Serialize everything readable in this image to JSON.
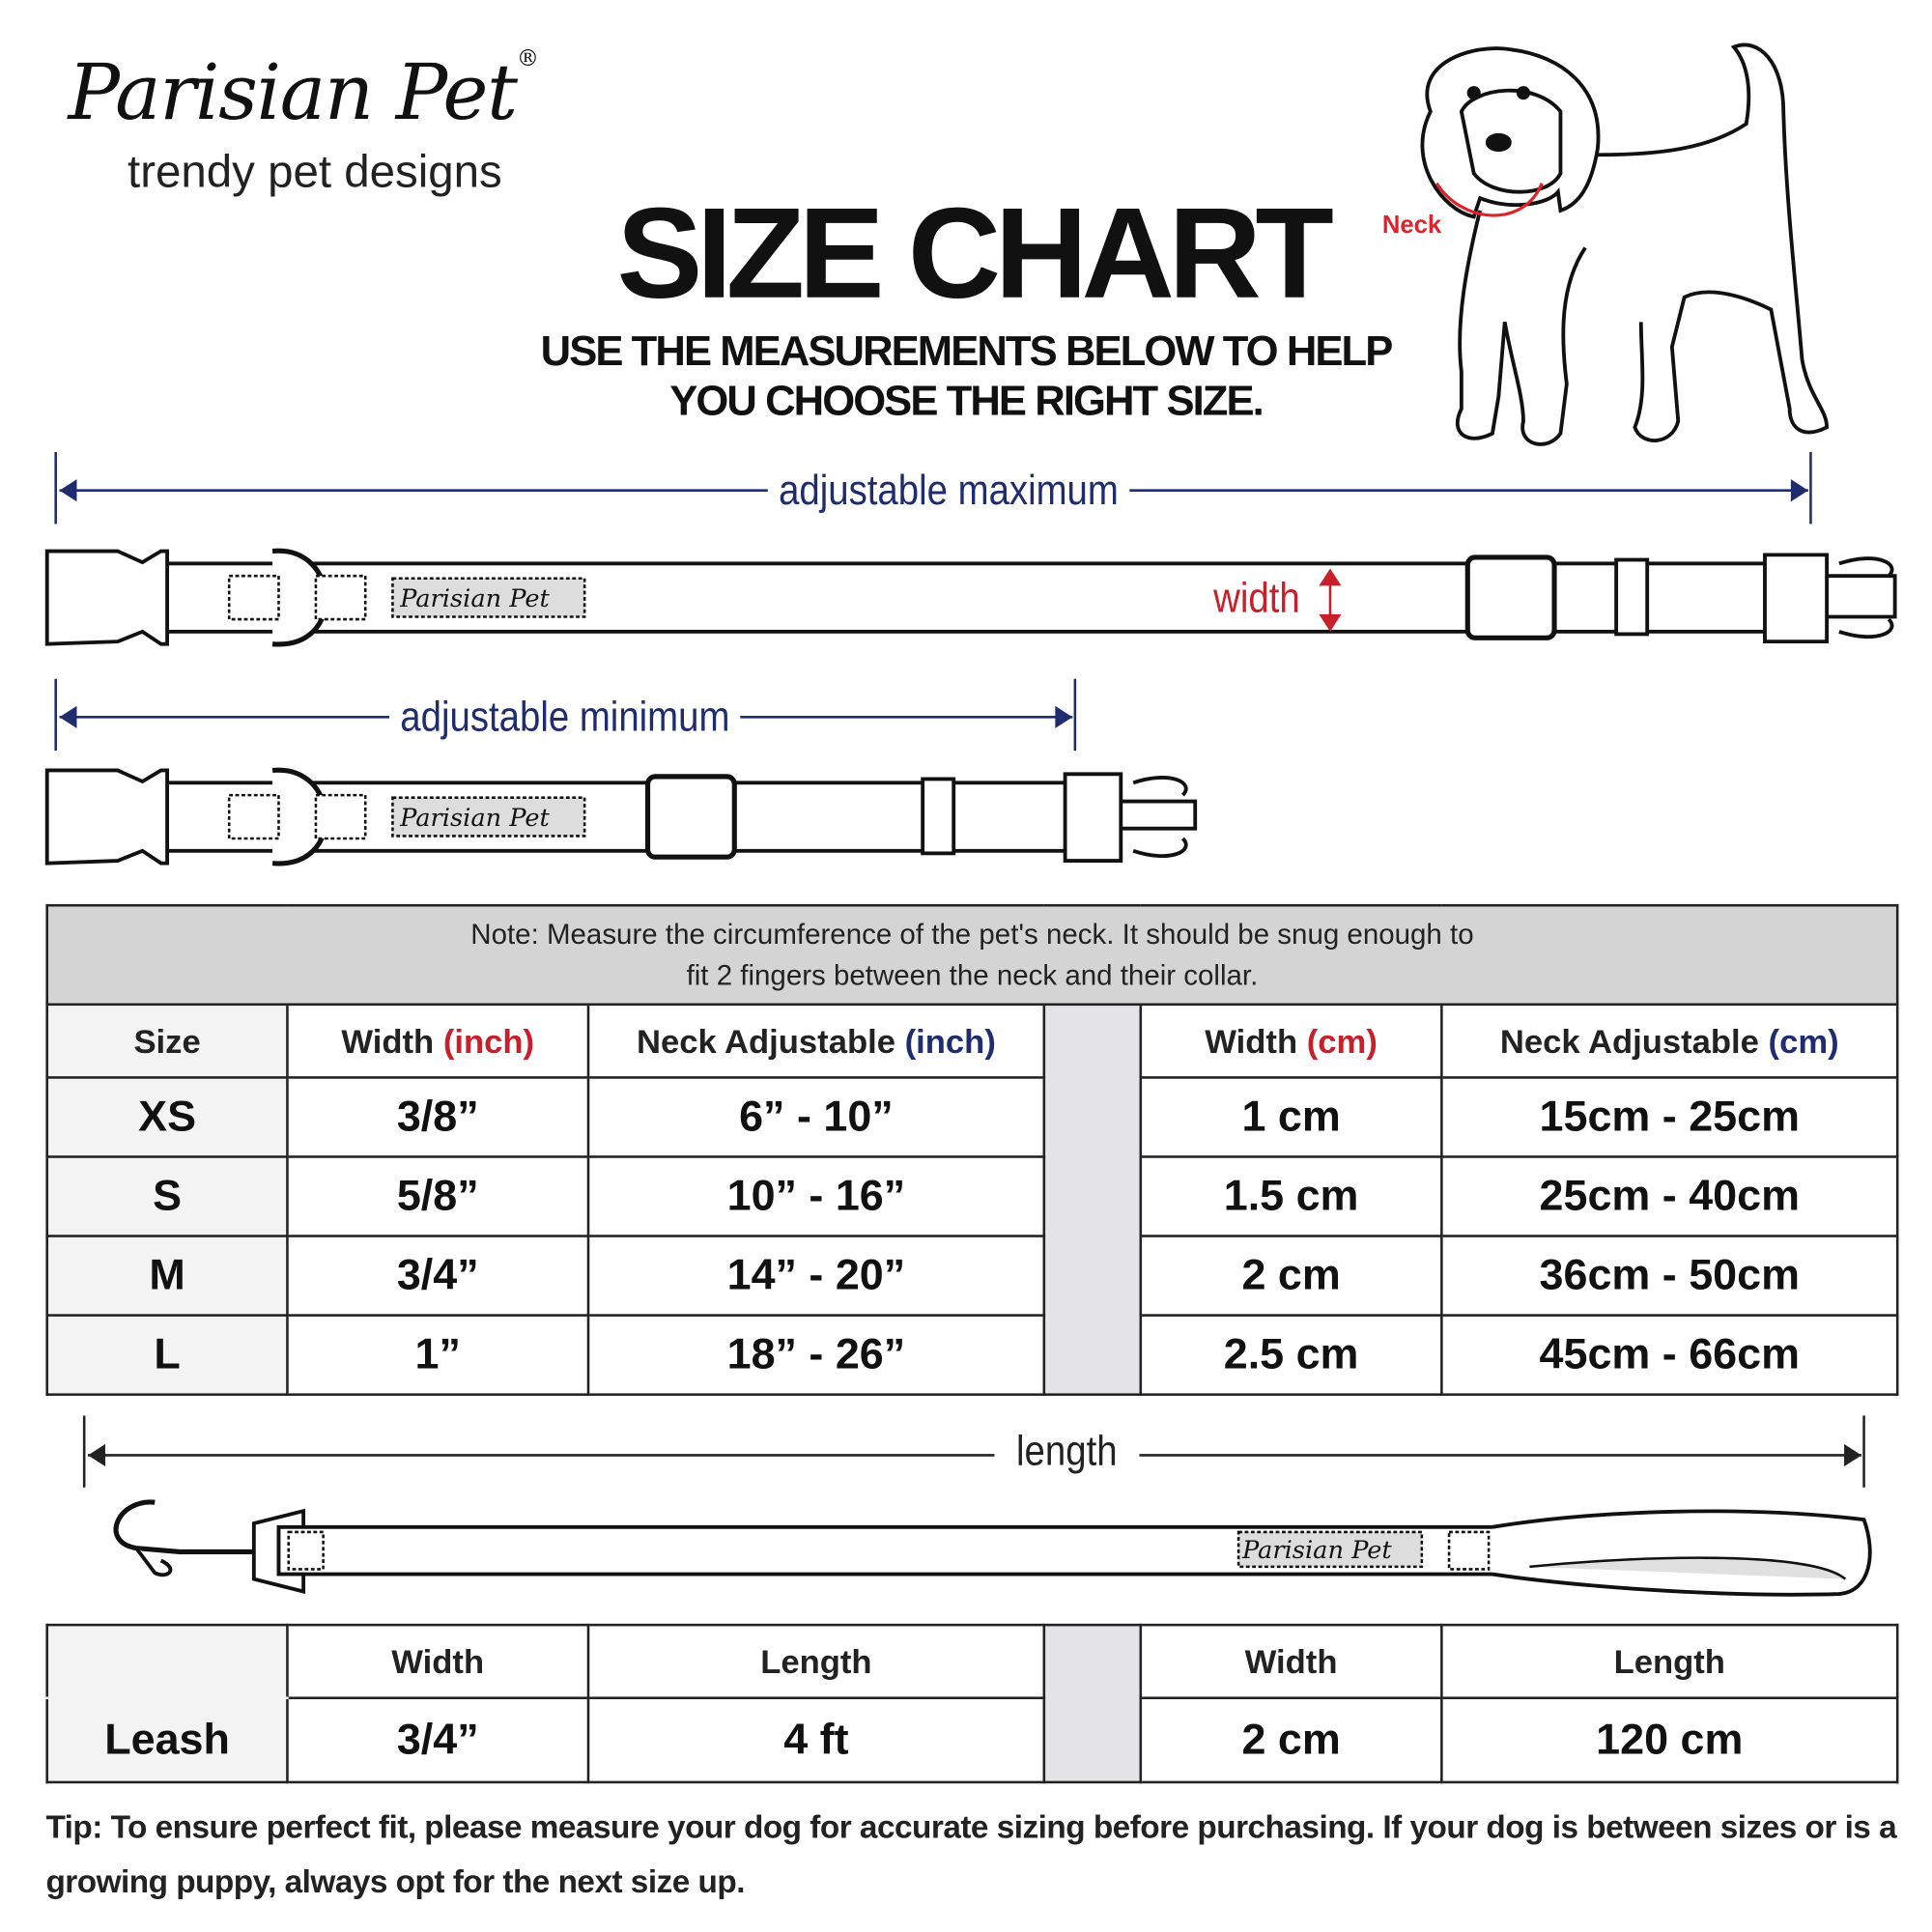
{
  "brand": {
    "name": "Parisian Pet",
    "registered": "®",
    "tagline": "trendy pet designs"
  },
  "title": "SIZE CHART",
  "subtitle_lines": [
    "USE THE MEASUREMENTS BELOW TO HELP",
    "YOU CHOOSE THE RIGHT SIZE."
  ],
  "dog": {
    "neck_label": "Neck"
  },
  "diagram": {
    "max_label": "adjustable maximum",
    "min_label": "adjustable minimum",
    "width_label": "width",
    "length_label": "length",
    "collar_logo": "Parisian Pet"
  },
  "colors": {
    "navy": "#1f2d6e",
    "red": "#c8202a",
    "note_bg": "#d4d4d4"
  },
  "collar_table": {
    "note_lines": [
      "Note: Measure the circumference of the pet's neck. It should be snug enough to",
      "fit 2 fingers between the neck and their collar."
    ],
    "headers": {
      "size": "Size",
      "width": "Width",
      "neck": "Neck Adjustable",
      "unit_inch": "(inch)",
      "width_cm": "Width",
      "neck_cm": "Neck Adjustable",
      "unit_cm": "(cm)"
    },
    "rows": [
      {
        "size": "XS",
        "width_in": "3/8”",
        "neck_in": "6” - 10”",
        "width_cm": "1 cm",
        "neck_cm": "15cm - 25cm"
      },
      {
        "size": "S",
        "width_in": "5/8”",
        "neck_in": "10” - 16”",
        "width_cm": "1.5 cm",
        "neck_cm": "25cm - 40cm"
      },
      {
        "size": "M",
        "width_in": "3/4”",
        "neck_in": "14” - 20”",
        "width_cm": "2 cm",
        "neck_cm": "36cm - 50cm"
      },
      {
        "size": "L",
        "width_in": "1”",
        "neck_in": "18” - 26”",
        "width_cm": "2.5 cm",
        "neck_cm": "45cm - 66cm"
      }
    ]
  },
  "leash_table": {
    "headers": [
      "Width",
      "Length",
      "Width",
      "Length"
    ],
    "row": {
      "label": "Leash",
      "width_in": "3/4”",
      "length_ft": "4 ft",
      "width_cm": "2 cm",
      "length_cm": "120 cm"
    }
  },
  "tip": "Tip: To ensure perfect fit, please measure your dog for accurate sizing before purchasing. If your dog is between sizes or is a growing puppy, always opt for the next size up."
}
